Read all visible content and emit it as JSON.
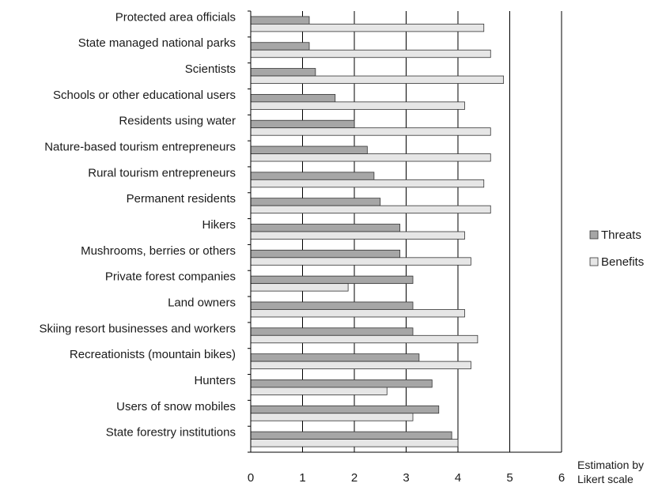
{
  "chart_data": {
    "type": "bar",
    "orientation": "horizontal",
    "categories": [
      "Protected area officials",
      "State managed national parks",
      "Scientists",
      "Schools or other educational users",
      "Residents using  water",
      "Nature-based tourism entrepreneurs",
      "Rural tourism entrepreneurs",
      "Permanent residents",
      "Hikers",
      "Mushrooms, berries or others",
      "Private forest companies",
      "Land owners",
      "Skiing resort businesses and workers",
      "Recreationists (mountain bikes)",
      "Hunters",
      "Users of snow mobiles",
      "State forestry institutions"
    ],
    "series": [
      {
        "name": "Threats",
        "color": "#a6a6a6",
        "values": [
          1.13,
          1.13,
          1.25,
          1.63,
          2.0,
          2.25,
          2.38,
          2.5,
          2.88,
          2.88,
          3.13,
          3.13,
          3.13,
          3.25,
          3.5,
          3.63,
          3.88
        ]
      },
      {
        "name": "Benefits",
        "color": "#e6e6e6",
        "values": [
          4.5,
          4.63,
          4.88,
          4.13,
          4.63,
          4.63,
          4.5,
          4.63,
          4.13,
          4.25,
          1.88,
          4.13,
          4.38,
          4.25,
          2.63,
          3.13,
          4.0
        ]
      }
    ],
    "xlim": [
      0,
      6
    ],
    "xticks": [
      "0",
      "1",
      "2",
      "3",
      "4",
      "5",
      "6"
    ],
    "xlabel_lines": [
      "Estimation by",
      "Likert scale"
    ],
    "grid": "vertical",
    "legend_position": "right"
  }
}
